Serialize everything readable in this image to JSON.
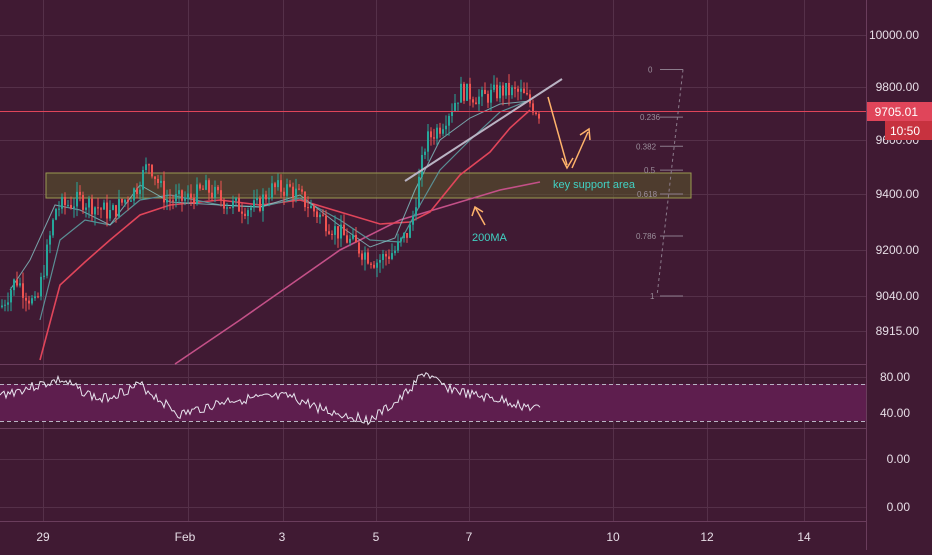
{
  "chart_data": {
    "type": "candlestick",
    "price_axis": {
      "ticks": [
        "10000.00",
        "9800.00",
        "9600.00",
        "9400.00",
        "9200.00",
        "9040.00",
        "8915.00"
      ],
      "last_price": "9705.01",
      "countdown": "10:50"
    },
    "rsi_axis": {
      "ticks": [
        "80.00",
        "40.00",
        "0.00",
        "0.00"
      ]
    },
    "time_axis": {
      "ticks": [
        "29",
        "Feb",
        "3",
        "5",
        "7",
        "10",
        "12",
        "14"
      ]
    },
    "fib_levels": [
      {
        "label": "0",
        "value": 9870
      },
      {
        "label": "0.236",
        "value": 9690
      },
      {
        "label": "0.382",
        "value": 9580
      },
      {
        "label": "0.5",
        "value": 9490
      },
      {
        "label": "0.618",
        "value": 9400
      },
      {
        "label": "0.786",
        "value": 9250
      },
      {
        "label": "1",
        "value": 9040
      }
    ],
    "annotations": {
      "support_label": "key support area",
      "ma_label": "200MA"
    },
    "support_zone": [
      9390,
      9490
    ],
    "colors": {
      "background": "#401a33",
      "up": "#26a69a",
      "down": "#ef5350",
      "ma_fast": "#e0455a",
      "ma_slow": "#c45088",
      "annotation": "#ffb36b",
      "label_teal": "#41d1c3",
      "rsi_band": "#5e1e4e"
    }
  }
}
